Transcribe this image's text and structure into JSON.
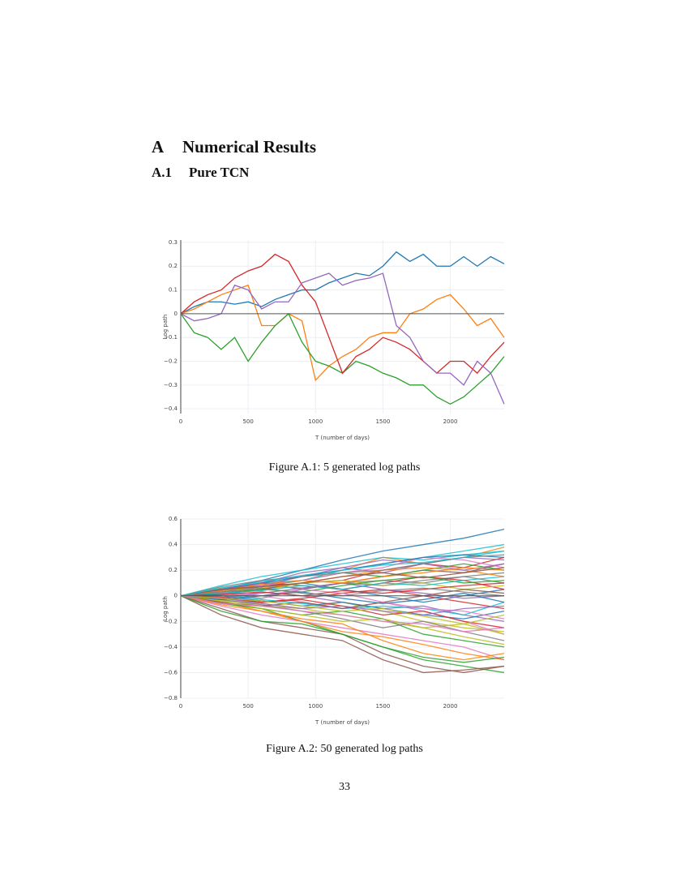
{
  "heading": {
    "number": "A",
    "title": "Numerical Results"
  },
  "subheading": {
    "number": "A.1",
    "title": "Pure TCN"
  },
  "chart_data": [
    {
      "type": "line",
      "caption": "Figure A.1: 5 generated log paths",
      "x_label": "T (number of days)",
      "y_label": "Log path",
      "xlim": [
        0,
        2400
      ],
      "ylim": [
        -0.42,
        0.31
      ],
      "xticks": [
        0,
        500,
        1000,
        1500,
        2000
      ],
      "yticks": [
        0.3,
        0.2,
        0.1,
        0,
        {
          "value": -0.1,
          "label": "−0.1"
        },
        {
          "value": -0.2,
          "label": "−0.2"
        },
        {
          "value": -0.3,
          "label": "−0.3"
        },
        {
          "value": -0.4,
          "label": "−0.4"
        }
      ],
      "grid": true,
      "zeroline": true,
      "x": [
        0,
        100,
        200,
        300,
        400,
        500,
        600,
        700,
        800,
        900,
        1000,
        1100,
        1200,
        1300,
        1400,
        1500,
        1600,
        1700,
        1800,
        1900,
        2000,
        2100,
        2200,
        2300,
        2400
      ],
      "series": [
        {
          "color": "#1f77b4",
          "values": [
            0,
            0.03,
            0.05,
            0.05,
            0.04,
            0.05,
            0.03,
            0.06,
            0.08,
            0.1,
            0.1,
            0.13,
            0.15,
            0.17,
            0.16,
            0.2,
            0.26,
            0.22,
            0.25,
            0.2,
            0.2,
            0.24,
            0.2,
            0.24,
            0.21
          ]
        },
        {
          "color": "#ff7f0e",
          "values": [
            0,
            0.02,
            0.05,
            0.08,
            0.1,
            0.12,
            -0.05,
            -0.05,
            0,
            -0.03,
            -0.28,
            -0.22,
            -0.18,
            -0.15,
            -0.1,
            -0.08,
            -0.08,
            0,
            0.02,
            0.06,
            0.08,
            0.02,
            -0.05,
            -0.02,
            -0.1
          ]
        },
        {
          "color": "#2ca02c",
          "values": [
            0,
            -0.08,
            -0.1,
            -0.15,
            -0.1,
            -0.2,
            -0.12,
            -0.05,
            0,
            -0.12,
            -0.2,
            -0.22,
            -0.25,
            -0.2,
            -0.22,
            -0.25,
            -0.27,
            -0.3,
            -0.3,
            -0.35,
            -0.38,
            -0.35,
            -0.3,
            -0.25,
            -0.18
          ]
        },
        {
          "color": "#d62728",
          "values": [
            0,
            0.05,
            0.08,
            0.1,
            0.15,
            0.18,
            0.2,
            0.25,
            0.22,
            0.12,
            0.05,
            -0.1,
            -0.25,
            -0.18,
            -0.15,
            -0.1,
            -0.12,
            -0.15,
            -0.2,
            -0.25,
            -0.2,
            -0.2,
            -0.25,
            -0.18,
            -0.12
          ]
        },
        {
          "color": "#9467bd",
          "values": [
            0,
            -0.03,
            -0.02,
            0,
            0.12,
            0.1,
            0.02,
            0.05,
            0.05,
            0.13,
            0.15,
            0.17,
            0.12,
            0.14,
            0.15,
            0.17,
            -0.05,
            -0.1,
            -0.2,
            -0.25,
            -0.25,
            -0.3,
            -0.2,
            -0.25,
            -0.38
          ]
        }
      ]
    },
    {
      "type": "line",
      "caption": "Figure A.2: 50 generated log paths",
      "x_label": "T (number of days)",
      "y_label": "Log path",
      "xlim": [
        0,
        2400
      ],
      "ylim": [
        -0.8,
        0.6
      ],
      "xticks": [
        0,
        500,
        1000,
        1500,
        2000
      ],
      "yticks": [
        0.6,
        0.4,
        0.2,
        0,
        {
          "value": -0.2,
          "label": "−0.2"
        },
        {
          "value": -0.4,
          "label": "−0.4"
        },
        {
          "value": -0.6,
          "label": "−0.6"
        },
        {
          "value": -0.8,
          "label": "−0.8"
        }
      ],
      "grid": true,
      "zeroline": true,
      "palette": [
        "#1f77b4",
        "#ff7f0e",
        "#2ca02c",
        "#d62728",
        "#9467bd",
        "#8c564b",
        "#e377c2",
        "#7f7f7f",
        "#bcbd22",
        "#17becf"
      ],
      "x": [
        0,
        300,
        600,
        900,
        1200,
        1500,
        1800,
        2100,
        2400
      ],
      "series": [
        {
          "values": [
            0,
            0.05,
            0.12,
            0.2,
            0.28,
            0.35,
            0.4,
            0.45,
            0.52
          ]
        },
        {
          "values": [
            0,
            0.03,
            0.08,
            0.15,
            0.2,
            0.3,
            0.25,
            0.3,
            0.38
          ]
        },
        {
          "values": [
            0,
            -0.05,
            -0.1,
            -0.2,
            -0.3,
            -0.4,
            -0.5,
            -0.55,
            -0.6
          ]
        },
        {
          "values": [
            0,
            0.02,
            0.05,
            0.1,
            0.12,
            0.2,
            0.25,
            0.22,
            0.3
          ]
        },
        {
          "values": [
            0,
            -0.02,
            0.03,
            0,
            -0.05,
            -0.1,
            -0.08,
            -0.15,
            -0.2
          ]
        },
        {
          "values": [
            0,
            0.04,
            0.1,
            0.05,
            0.1,
            0.15,
            0.2,
            0.18,
            0.25
          ]
        },
        {
          "values": [
            0,
            -0.08,
            -0.15,
            -0.2,
            -0.25,
            -0.3,
            -0.35,
            -0.4,
            -0.5
          ]
        },
        {
          "values": [
            0,
            0.02,
            -0.02,
            0.05,
            0.1,
            0.08,
            0.12,
            0.15,
            0.1
          ]
        },
        {
          "values": [
            0,
            -0.03,
            -0.08,
            -0.1,
            -0.05,
            -0.12,
            -0.2,
            -0.25,
            -0.28
          ]
        },
        {
          "values": [
            0,
            0.06,
            0.1,
            0.12,
            0.2,
            0.25,
            0.3,
            0.35,
            0.4
          ]
        },
        {
          "values": [
            0,
            0.01,
            0.05,
            0.1,
            0.05,
            0,
            -0.05,
            0,
            0.05
          ]
        },
        {
          "values": [
            0,
            -0.05,
            -0.12,
            -0.18,
            -0.22,
            -0.35,
            -0.45,
            -0.5,
            -0.45
          ]
        },
        {
          "values": [
            0,
            0.03,
            0.07,
            0.12,
            0.18,
            0.15,
            0.2,
            0.25,
            0.2
          ]
        },
        {
          "values": [
            0,
            -0.02,
            -0.05,
            -0.02,
            0.02,
            0.05,
            0,
            -0.05,
            -0.1
          ]
        },
        {
          "values": [
            0,
            0.05,
            0.08,
            0.15,
            0.22,
            0.18,
            0.25,
            0.3,
            0.28
          ]
        },
        {
          "values": [
            0,
            -0.1,
            -0.2,
            -0.25,
            -0.3,
            -0.45,
            -0.55,
            -0.6,
            -0.55
          ]
        },
        {
          "values": [
            0,
            0.02,
            0,
            -0.05,
            -0.1,
            -0.05,
            -0.12,
            -0.2,
            -0.3
          ]
        },
        {
          "values": [
            0,
            0.04,
            0.08,
            0.06,
            0.1,
            0.12,
            0.1,
            0.15,
            0.18
          ]
        },
        {
          "values": [
            0,
            -0.04,
            -0.06,
            -0.1,
            -0.15,
            -0.2,
            -0.25,
            -0.22,
            -0.3
          ]
        },
        {
          "values": [
            0,
            0.08,
            0.15,
            0.2,
            0.25,
            0.3,
            0.28,
            0.32,
            0.35
          ]
        },
        {
          "values": [
            0,
            0,
            -0.04,
            -0.08,
            -0.05,
            -0.1,
            -0.15,
            -0.18,
            -0.12
          ]
        },
        {
          "values": [
            0,
            0.03,
            0.06,
            0.1,
            0.15,
            0.2,
            0.22,
            0.2,
            0.15
          ]
        },
        {
          "values": [
            0,
            -0.06,
            -0.1,
            -0.15,
            -0.12,
            -0.18,
            -0.3,
            -0.35,
            -0.4
          ]
        },
        {
          "values": [
            0,
            0.05,
            0.1,
            0.08,
            0.05,
            0.1,
            0.15,
            0.12,
            0.05
          ]
        },
        {
          "values": [
            0,
            -0.02,
            0.02,
            0.06,
            0.1,
            0.05,
            0.02,
            -0.02,
            0
          ]
        },
        {
          "values": [
            0,
            -0.15,
            -0.25,
            -0.3,
            -0.35,
            -0.5,
            -0.6,
            -0.58,
            -0.55
          ]
        },
        {
          "values": [
            0,
            0.02,
            0.08,
            0.12,
            0.18,
            0.22,
            0.3,
            0.28,
            0.22
          ]
        },
        {
          "values": [
            0,
            -0.03,
            -0.07,
            -0.12,
            -0.18,
            -0.25,
            -0.2,
            -0.28,
            -0.35
          ]
        },
        {
          "values": [
            0,
            0.06,
            0.04,
            0.1,
            0.12,
            0.08,
            0.1,
            0.05,
            0.08
          ]
        },
        {
          "values": [
            0,
            0.01,
            -0.03,
            -0.06,
            -0.1,
            -0.08,
            -0.1,
            -0.15,
            -0.05
          ]
        },
        {
          "values": [
            0,
            0.04,
            0.1,
            0.15,
            0.2,
            0.25,
            0.3,
            0.32,
            0.3
          ]
        },
        {
          "values": [
            0,
            -0.07,
            -0.12,
            -0.2,
            -0.28,
            -0.32,
            -0.38,
            -0.45,
            -0.5
          ]
        },
        {
          "values": [
            0,
            0.02,
            0.05,
            0.03,
            0.08,
            0.12,
            0.15,
            0.1,
            0.12
          ]
        },
        {
          "values": [
            0,
            -0.01,
            -0.05,
            -0.03,
            -0.08,
            -0.15,
            -0.12,
            -0.2,
            -0.25
          ]
        },
        {
          "values": [
            0,
            0.05,
            0.1,
            0.18,
            0.22,
            0.28,
            0.25,
            0.2,
            0.25
          ]
        },
        {
          "values": [
            0,
            -0.05,
            -0.08,
            -0.05,
            -0.1,
            -0.05,
            0,
            0.05,
            0.02
          ]
        },
        {
          "values": [
            0,
            0.03,
            0,
            0.05,
            0.02,
            -0.05,
            -0.1,
            -0.12,
            -0.18
          ]
        },
        {
          "values": [
            0,
            0.07,
            0.12,
            0.15,
            0.18,
            0.2,
            0.25,
            0.3,
            0.32
          ]
        },
        {
          "values": [
            0,
            -0.04,
            -0.1,
            -0.15,
            -0.2,
            -0.18,
            -0.25,
            -0.32,
            -0.38
          ]
        },
        {
          "values": [
            0,
            0.02,
            0.04,
            0.08,
            0.05,
            0.1,
            0.08,
            0.12,
            0.15
          ]
        },
        {
          "values": [
            0,
            -0.03,
            0,
            0.03,
            -0.02,
            -0.06,
            -0.03,
            0.02,
            -0.05
          ]
        },
        {
          "values": [
            0,
            0.04,
            0.09,
            0.12,
            0.1,
            0.15,
            0.18,
            0.22,
            0.2
          ]
        },
        {
          "values": [
            0,
            -0.12,
            -0.2,
            -0.22,
            -0.3,
            -0.4,
            -0.48,
            -0.52,
            -0.48
          ]
        },
        {
          "values": [
            0,
            0.01,
            0.03,
            0,
            0.04,
            0.02,
            0.05,
            0.08,
            0.1
          ]
        },
        {
          "values": [
            0,
            -0.02,
            -0.06,
            -0.1,
            -0.08,
            -0.12,
            -0.15,
            -0.1,
            -0.08
          ]
        },
        {
          "values": [
            0,
            0.05,
            0.07,
            0.1,
            0.15,
            0.18,
            0.14,
            0.18,
            0.22
          ]
        },
        {
          "values": [
            0,
            -0.06,
            -0.08,
            -0.12,
            -0.15,
            -0.2,
            -0.22,
            -0.28,
            -0.25
          ]
        },
        {
          "values": [
            0,
            0.03,
            0.06,
            0.02,
            0,
            0.04,
            0.06,
            0.03,
            0
          ]
        },
        {
          "values": [
            0,
            -0.02,
            -0.04,
            -0.08,
            -0.12,
            -0.1,
            -0.16,
            -0.22,
            -0.15
          ]
        },
        {
          "values": [
            0,
            0.06,
            0.11,
            0.16,
            0.2,
            0.24,
            0.26,
            0.3,
            0.35
          ]
        }
      ]
    }
  ],
  "page_number": "33"
}
